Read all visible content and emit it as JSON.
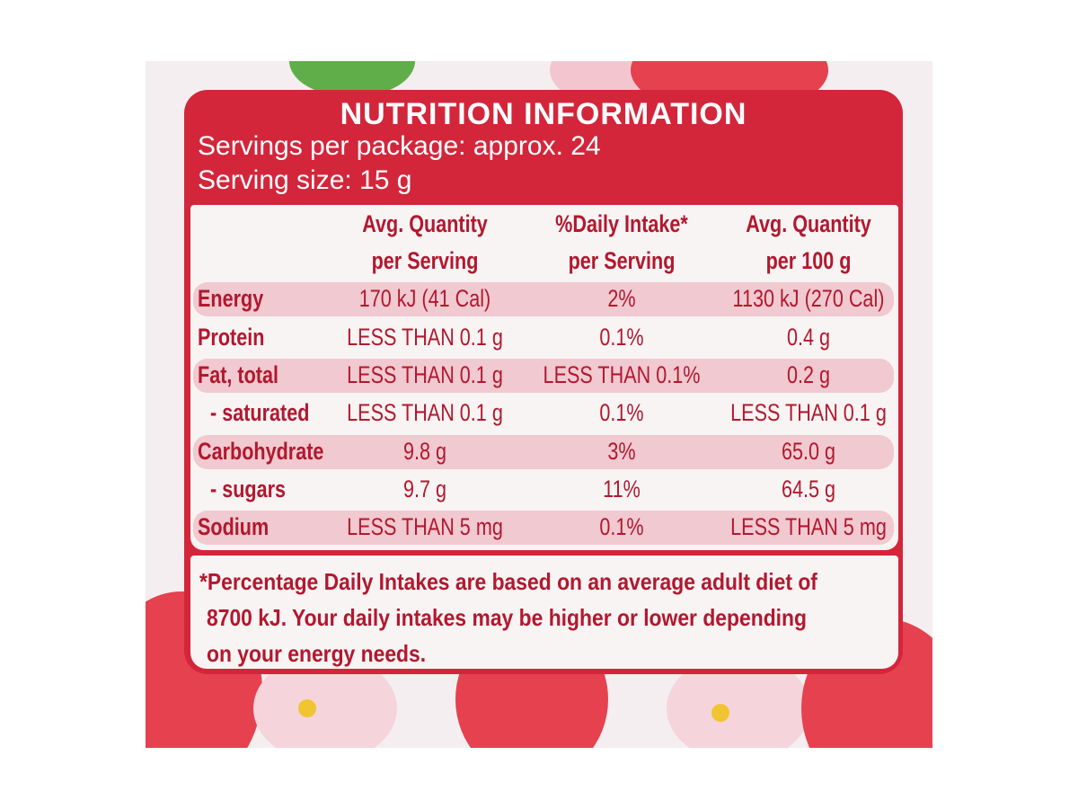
{
  "header": {
    "title": "NUTRITION INFORMATION",
    "servings_per_package": "Servings per package: approx. 24",
    "serving_size": "Serving size: 15 g"
  },
  "table": {
    "columns": [
      [
        "Avg. Quantity",
        "per Serving"
      ],
      [
        "%Daily Intake*",
        "per Serving"
      ],
      [
        "Avg. Quantity",
        "per 100 g"
      ]
    ],
    "rows": [
      [
        "Energy",
        "170 kJ (41 Cal)",
        "2%",
        "1130 kJ (270 Cal)"
      ],
      [
        "Protein",
        "LESS THAN 0.1 g",
        "0.1%",
        "0.4 g"
      ],
      [
        "Fat, total",
        "LESS THAN 0.1 g",
        "LESS THAN 0.1%",
        "0.2 g"
      ],
      [
        "- saturated",
        "LESS THAN 0.1 g",
        "0.1%",
        "LESS THAN 0.1 g"
      ],
      [
        "Carbohydrate",
        "9.8 g",
        "3%",
        "65.0 g"
      ],
      [
        "- sugars",
        "9.7 g",
        "11%",
        "64.5 g"
      ],
      [
        "Sodium",
        "LESS THAN 5 mg",
        "0.1%",
        "LESS THAN 5 mg"
      ]
    ]
  },
  "footnote": [
    "*Percentage Daily Intakes are based on an average adult diet of",
    "8700 kJ. Your daily intakes may be higher or lower depending",
    "on your energy needs."
  ]
}
